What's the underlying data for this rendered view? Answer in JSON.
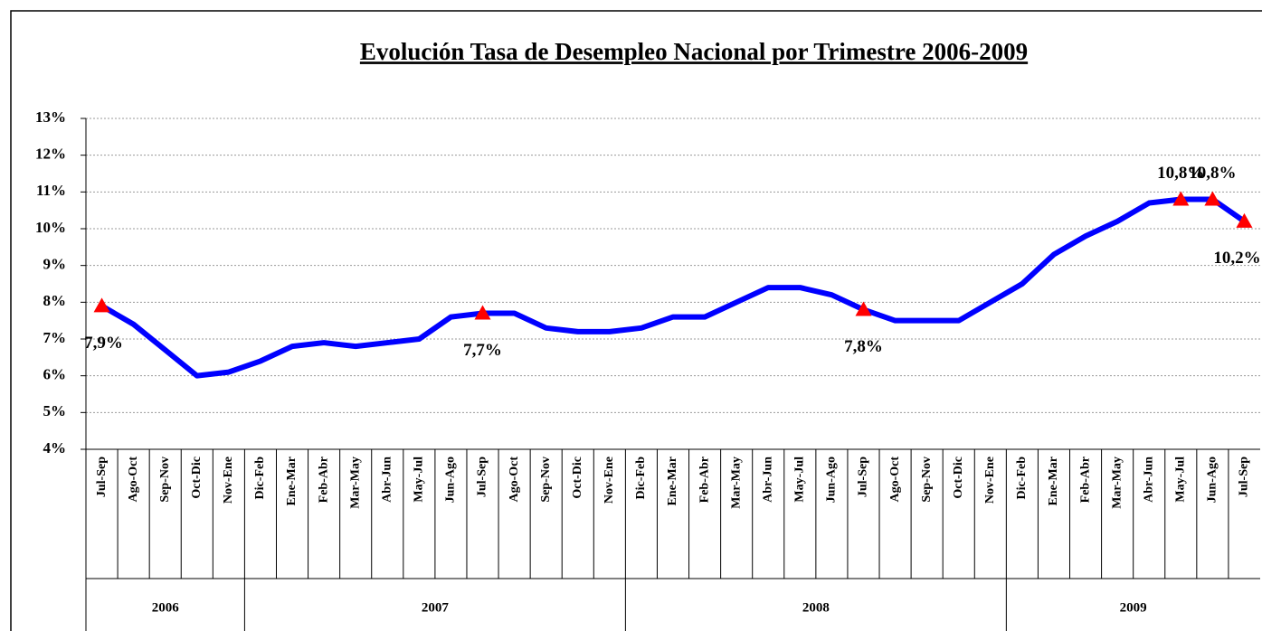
{
  "chart_data": {
    "type": "line",
    "title": "Evolución Tasa de Desempleo Nacional por Trimestre 2006-2009",
    "categories": [
      "Jul-Sep",
      "Ago-Oct",
      "Sep-Nov",
      "Oct-Dic",
      "Nov-Ene",
      "Dic-Feb",
      "Ene-Mar",
      "Feb-Abr",
      "Mar-May",
      "Abr-Jun",
      "May-Jul",
      "Jun-Ago",
      "Jul-Sep",
      "Ago-Oct",
      "Sep-Nov",
      "Oct-Dic",
      "Nov-Ene",
      "Dic-Feb",
      "Ene-Mar",
      "Feb-Abr",
      "Mar-May",
      "Abr-Jun",
      "May-Jul",
      "Jun-Ago",
      "Jul-Sep",
      "Ago-Oct",
      "Sep-Nov",
      "Oct-Dic",
      "Nov-Ene",
      "Dic-Feb",
      "Ene-Mar",
      "Feb-Abr",
      "Mar-May",
      "Abr-Jun",
      "May-Jul",
      "Jun-Ago",
      "Jul-Sep"
    ],
    "x_groups": [
      {
        "label": "2006",
        "size": 5
      },
      {
        "label": "2007",
        "size": 12
      },
      {
        "label": "2008",
        "size": 12
      },
      {
        "label": "2009",
        "size": 8
      }
    ],
    "series": [
      {
        "color": "#0000ff",
        "marker_color": "#ff0000",
        "values": [
          7.9,
          7.4,
          6.7,
          6.0,
          6.1,
          6.4,
          6.8,
          6.9,
          6.8,
          6.9,
          7.0,
          7.6,
          7.7,
          7.7,
          7.3,
          7.2,
          7.2,
          7.3,
          7.6,
          7.6,
          8.0,
          8.4,
          8.4,
          8.2,
          7.8,
          7.5,
          7.5,
          7.5,
          8.0,
          8.5,
          9.3,
          9.8,
          10.2,
          10.7,
          10.8,
          10.8,
          10.2
        ],
        "value_labels": [
          "7,9%",
          null,
          null,
          null,
          null,
          null,
          null,
          null,
          null,
          null,
          null,
          null,
          "7,7%",
          null,
          null,
          null,
          null,
          null,
          null,
          null,
          null,
          null,
          null,
          null,
          "7,8%",
          null,
          null,
          null,
          null,
          null,
          null,
          null,
          null,
          null,
          "10,8%",
          "10,8%",
          "10,2%"
        ]
      }
    ],
    "ylim": [
      4,
      13
    ],
    "yticks": [
      {
        "value": 4,
        "label": "4%"
      },
      {
        "value": 5,
        "label": "5%"
      },
      {
        "value": 6,
        "label": "6%"
      },
      {
        "value": 7,
        "label": "7%"
      },
      {
        "value": 8,
        "label": "8%"
      },
      {
        "value": 9,
        "label": "9%"
      },
      {
        "value": 10,
        "label": "10%"
      },
      {
        "value": 11,
        "label": "11%"
      },
      {
        "value": 12,
        "label": "12%"
      },
      {
        "value": 13,
        "label": "13%"
      }
    ],
    "grid": true
  }
}
